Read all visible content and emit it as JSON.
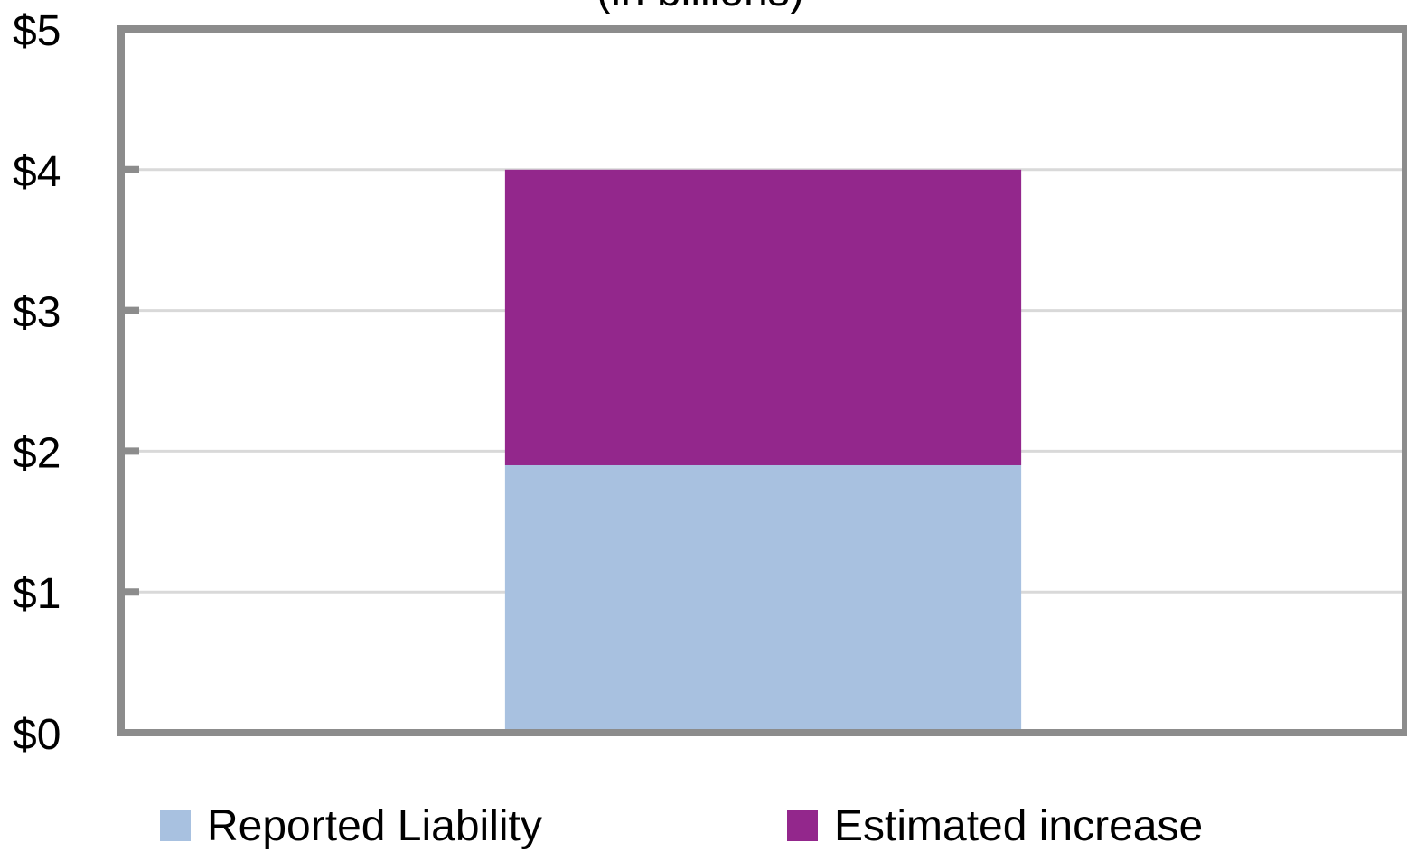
{
  "chart_data": {
    "type": "bar",
    "stacked": true,
    "subtitle": "(in billions)",
    "categories": [
      ""
    ],
    "series": [
      {
        "name": "Reported Liability",
        "values": [
          1.9
        ],
        "color": "#a8c1e0"
      },
      {
        "name": "Estimated increase",
        "values": [
          2.1
        ],
        "color": "#93278c"
      }
    ],
    "ylim": [
      0,
      5
    ],
    "y_ticks": [
      0,
      1,
      2,
      3,
      4,
      5
    ],
    "y_tick_labels": [
      "$0",
      "$1",
      "$2",
      "$3",
      "$4",
      "$5"
    ],
    "grid": true,
    "legend_position": "bottom"
  }
}
